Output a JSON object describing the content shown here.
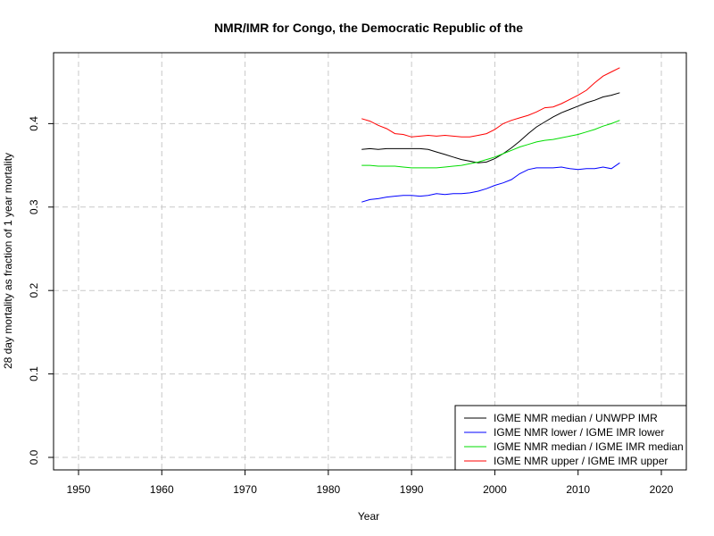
{
  "chart_data": {
    "type": "line",
    "title": "NMR/IMR for Congo, the Democratic Republic of the",
    "xlabel": "Year",
    "ylabel": "28 day mortality as fraction of 1 year mortality",
    "xlim": [
      1947,
      2023
    ],
    "ylim": [
      -0.015,
      0.485
    ],
    "x_ticks": [
      1950,
      1960,
      1970,
      1980,
      1990,
      2000,
      2010,
      2020
    ],
    "y_ticks": [
      0.0,
      0.1,
      0.2,
      0.3,
      0.4
    ],
    "y_tick_labels": [
      "0.0",
      "0.1",
      "0.2",
      "0.3",
      "0.4"
    ],
    "grid": true,
    "legend_position": "bottom-right",
    "series": [
      {
        "name": "IGME NMR median / UNWPP IMR",
        "color": "#000000",
        "x": [
          1984,
          1985,
          1986,
          1987,
          1988,
          1989,
          1990,
          1991,
          1992,
          1993,
          1994,
          1995,
          1996,
          1997,
          1998,
          1999,
          2000,
          2001,
          2002,
          2003,
          2004,
          2005,
          2006,
          2007,
          2008,
          2009,
          2010,
          2011,
          2012,
          2013,
          2014,
          2015
        ],
        "y": [
          0.369,
          0.37,
          0.369,
          0.37,
          0.37,
          0.37,
          0.37,
          0.37,
          0.369,
          0.366,
          0.363,
          0.36,
          0.357,
          0.355,
          0.353,
          0.354,
          0.358,
          0.364,
          0.371,
          0.379,
          0.388,
          0.396,
          0.402,
          0.408,
          0.413,
          0.417,
          0.421,
          0.425,
          0.428,
          0.432,
          0.434,
          0.437
        ]
      },
      {
        "name": "IGME NMR lower / IGME IMR lower",
        "color": "#0000ff",
        "x": [
          1984,
          1985,
          1986,
          1987,
          1988,
          1989,
          1990,
          1991,
          1992,
          1993,
          1994,
          1995,
          1996,
          1997,
          1998,
          1999,
          2000,
          2001,
          2002,
          2003,
          2004,
          2005,
          2006,
          2007,
          2008,
          2009,
          2010,
          2011,
          2012,
          2013,
          2014,
          2015
        ],
        "y": [
          0.306,
          0.309,
          0.31,
          0.312,
          0.313,
          0.314,
          0.314,
          0.313,
          0.314,
          0.316,
          0.315,
          0.316,
          0.316,
          0.317,
          0.319,
          0.322,
          0.326,
          0.329,
          0.333,
          0.34,
          0.345,
          0.347,
          0.347,
          0.347,
          0.348,
          0.346,
          0.345,
          0.346,
          0.346,
          0.348,
          0.346,
          0.353
        ]
      },
      {
        "name": "IGME NMR median / IGME IMR median",
        "color": "#00dd00",
        "x": [
          1984,
          1985,
          1986,
          1987,
          1988,
          1989,
          1990,
          1991,
          1992,
          1993,
          1994,
          1995,
          1996,
          1997,
          1998,
          1999,
          2000,
          2001,
          2002,
          2003,
          2004,
          2005,
          2006,
          2007,
          2008,
          2009,
          2010,
          2011,
          2012,
          2013,
          2014,
          2015
        ],
        "y": [
          0.35,
          0.35,
          0.349,
          0.349,
          0.349,
          0.348,
          0.347,
          0.347,
          0.347,
          0.347,
          0.348,
          0.349,
          0.35,
          0.352,
          0.354,
          0.357,
          0.36,
          0.364,
          0.368,
          0.372,
          0.375,
          0.378,
          0.38,
          0.381,
          0.383,
          0.385,
          0.387,
          0.39,
          0.393,
          0.397,
          0.4,
          0.404
        ]
      },
      {
        "name": "IGME NMR upper / IGME IMR upper",
        "color": "#ff0000",
        "x": [
          1984,
          1985,
          1986,
          1987,
          1988,
          1989,
          1990,
          1991,
          1992,
          1993,
          1994,
          1995,
          1996,
          1997,
          1998,
          1999,
          2000,
          2001,
          2002,
          2003,
          2004,
          2005,
          2006,
          2007,
          2008,
          2009,
          2010,
          2011,
          2012,
          2013,
          2014,
          2015
        ],
        "y": [
          0.406,
          0.403,
          0.398,
          0.394,
          0.388,
          0.387,
          0.384,
          0.385,
          0.386,
          0.385,
          0.386,
          0.385,
          0.384,
          0.384,
          0.386,
          0.388,
          0.393,
          0.4,
          0.404,
          0.407,
          0.41,
          0.414,
          0.419,
          0.42,
          0.424,
          0.429,
          0.434,
          0.44,
          0.449,
          0.457,
          0.462,
          0.467
        ]
      }
    ]
  }
}
